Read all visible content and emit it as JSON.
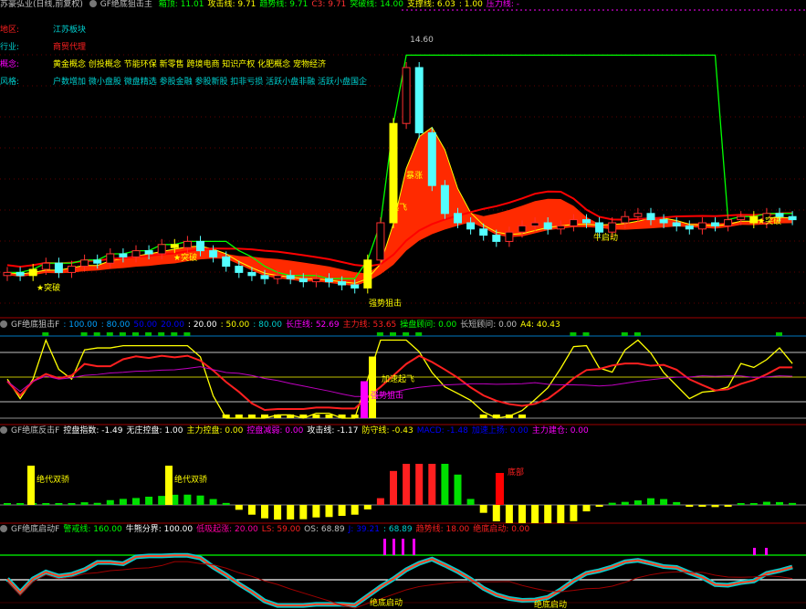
{
  "header": {
    "stock_title": "苏豪弘业(日线,前复权)",
    "indicator": "GF绝底狙击主",
    "items": [
      {
        "label": "箱顶: 11.01",
        "color": "#00ff00"
      },
      {
        "label": "攻击线: 9.71",
        "color": "#ffff00"
      },
      {
        "label": "趋势线: 9.71",
        "color": "#00ff00"
      },
      {
        "label": "C3: 9.71",
        "color": "#ff3030"
      },
      {
        "label": "突破线: 14.00",
        "color": "#00ff00"
      },
      {
        "label": "支撑线: 6.03",
        "color": "#ffff00"
      },
      {
        "label": ": 1.00",
        "color": "#ffff00"
      },
      {
        "label": "压力线: -",
        "color": "#ff00ff"
      }
    ]
  },
  "info": [
    {
      "key": "地区:",
      "value": "江苏板块",
      "key_color": "#ff2020",
      "value_color": "#00d0d0"
    },
    {
      "key": "行业:",
      "value": "商贸代理",
      "key_color": "#00d0d0",
      "value_color": "#ff2020"
    },
    {
      "key": "概念:",
      "value": "黄金概念 创投概念 节能环保 新零售 跨境电商 知识产权 化肥概念 宠物经济",
      "key_color": "#ff00ff",
      "value_color": "#ffff00"
    },
    {
      "key": "风格:",
      "value": "户数增加 微小盘股 微盘精选 参股金融 参股新股 扣非亏损 活跃小盘非融 活跃小盘国企",
      "key_color": "#00d0d0",
      "value_color": "#00d0d0"
    }
  ],
  "panels": [
    {
      "title": "GF绝底狙击F",
      "items": [
        {
          "label": ": 100.00",
          "color": "#00a0ff"
        },
        {
          "label": ": 80.00",
          "color": "#00a0ff"
        },
        {
          "label": "50.00",
          "color": "#0000ff"
        },
        {
          "label": "20.00",
          "color": "#0000ff"
        },
        {
          "label": ": 20.00",
          "color": "#ffffff"
        },
        {
          "label": ": 50.00",
          "color": "#ffff00"
        },
        {
          "label": ": 80.00",
          "color": "#00d0d0"
        },
        {
          "label": "长庄线: 52.69",
          "color": "#ff00ff"
        },
        {
          "label": "主力线: 53.65",
          "color": "#ff2020"
        },
        {
          "label": "操盘顾问: 0.00",
          "color": "#00ff00"
        },
        {
          "label": "长短顾问: 0.00",
          "color": "#c0c0c0"
        },
        {
          "label": "A4: 40.43",
          "color": "#ffff00"
        }
      ]
    },
    {
      "title": "GF绝底反击F",
      "items": [
        {
          "label": "控盘指数: -1.49",
          "color": "#ffffff"
        },
        {
          "label": "无庄控盘: 1.00",
          "color": "#ffffff"
        },
        {
          "label": "主力控盘: 0.00",
          "color": "#ffff00"
        },
        {
          "label": "控盘减弱: 0.00",
          "color": "#ff00ff"
        },
        {
          "label": "攻击线: -1.17",
          "color": "#ffffff"
        },
        {
          "label": "防守线: -0.43",
          "color": "#ffff00"
        },
        {
          "label": "MACD: -1.48",
          "color": "#0000ff"
        },
        {
          "label": "加速上扬: 0.00",
          "color": "#0000ff"
        },
        {
          "label": "主力建仓: 0.00",
          "color": "#ff00ff"
        }
      ]
    },
    {
      "title": "GF绝底启动F",
      "items": [
        {
          "label": "警戒线: 160.00",
          "color": "#00ff00"
        },
        {
          "label": "牛熊分界: 100.00",
          "color": "#ffffff"
        },
        {
          "label": "低吸起涨: 20.00",
          "color": "#ff00a0"
        },
        {
          "label": "LS: 59.00",
          "color": "#ff2020"
        },
        {
          "label": "OS: 68.89",
          "color": "#c0c0c0"
        },
        {
          "label": "J: 39.21",
          "color": "#0000ff"
        },
        {
          "label": ": 68.89",
          "color": "#00d0d0"
        },
        {
          "label": "趋势线: 18.00",
          "color": "#ff2020"
        },
        {
          "label": "绝底启动: 0.00",
          "color": "#ff2020"
        }
      ]
    }
  ],
  "annotations": {
    "high_price": "14.60",
    "breakout": "★突破",
    "bull_start": "牛启动",
    "rise": "起飞",
    "surge": "暴涨",
    "takeoff": "加速起飞",
    "strong_attack": "强势狙击",
    "twin": "绝代双骄",
    "bottom": "底部",
    "start_a": "绝底启动",
    "start_b": "绝底启动"
  },
  "chart_data": {
    "type": "candlestick",
    "closes": [
      7.0,
      6.9,
      7.1,
      7.3,
      7.0,
      7.2,
      7.4,
      7.3,
      7.6,
      7.5,
      7.7,
      7.6,
      7.9,
      7.8,
      8.0,
      7.7,
      7.5,
      7.2,
      7.0,
      6.9,
      6.8,
      6.9,
      6.8,
      6.7,
      6.8,
      6.7,
      6.6,
      6.5,
      7.4,
      8.6,
      11.8,
      13.6,
      11.5,
      9.8,
      8.9,
      8.6,
      8.4,
      8.2,
      8.0,
      8.3,
      8.5,
      8.6,
      8.4,
      8.5,
      8.7,
      8.6,
      8.3,
      8.6,
      8.8,
      8.9,
      8.7,
      8.6,
      8.5,
      8.4,
      8.6,
      8.5,
      8.7,
      8.8,
      8.6,
      8.9,
      8.8,
      8.7
    ],
    "yellow_bars": [
      2,
      13,
      28,
      30,
      58
    ],
    "high": 14.6,
    "colors": {
      "up": "#ff3030",
      "down": "#54ffff",
      "trend": "#00ff00",
      "ribbon": "#ff2a00",
      "signal": "#ffff00"
    }
  }
}
